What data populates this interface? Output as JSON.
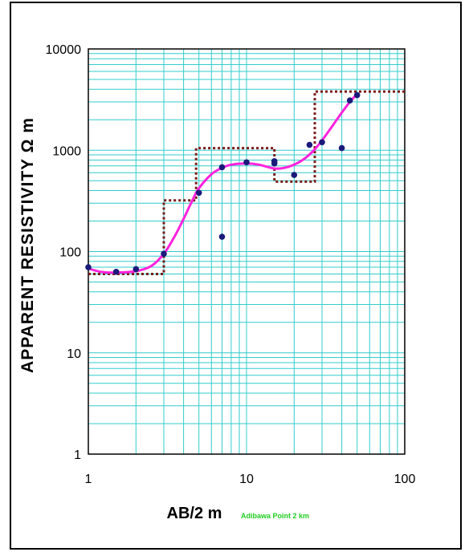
{
  "chart_data": {
    "type": "scatter",
    "title": "",
    "xlabel": "AB/2  m",
    "ylabel": "APPARENT RESISTIVITY  Ω m",
    "annotation": "Adibawa Point 2 km",
    "x_scale": "log",
    "y_scale": "log",
    "xlim": [
      1,
      100
    ],
    "ylim": [
      1,
      10000
    ],
    "x_tick_labels": [
      "1",
      "10",
      "100"
    ],
    "y_tick_labels": [
      "1",
      "10",
      "100",
      "1000",
      "10000"
    ],
    "grid": true,
    "legend": "none",
    "colors": {
      "grid": "#33cccc",
      "points": "#1a1a7a",
      "fit_curve": "#ff22dd",
      "layer_model": "#7a1a1a"
    },
    "series": [
      {
        "kind": "points",
        "x": [
          1,
          1.5,
          2,
          3,
          5,
          7,
          7,
          10,
          15,
          15,
          20,
          25,
          30,
          40,
          45,
          50
        ],
        "y": [
          70,
          63,
          67,
          95,
          380,
          680,
          140,
          760,
          780,
          740,
          570,
          1130,
          1200,
          1050,
          3100,
          3500
        ]
      },
      {
        "kind": "curve",
        "x": [
          1,
          1.2,
          1.5,
          2,
          2.5,
          3,
          3.5,
          4,
          4.5,
          5,
          6,
          7,
          8,
          10,
          12,
          15,
          18,
          22,
          26,
          30,
          35,
          40,
          45,
          50
        ],
        "y": [
          68,
          63,
          62,
          64,
          72,
          95,
          140,
          210,
          310,
          420,
          580,
          670,
          720,
          740,
          720,
          660,
          680,
          780,
          960,
          1250,
          1750,
          2350,
          3000,
          3600
        ]
      },
      {
        "kind": "layer-model",
        "x": [
          1,
          3,
          3,
          4.8,
          4.8,
          15,
          15,
          27,
          27,
          100
        ],
        "y": [
          60,
          60,
          320,
          320,
          1050,
          1050,
          490,
          490,
          3800,
          3800
        ]
      }
    ]
  }
}
